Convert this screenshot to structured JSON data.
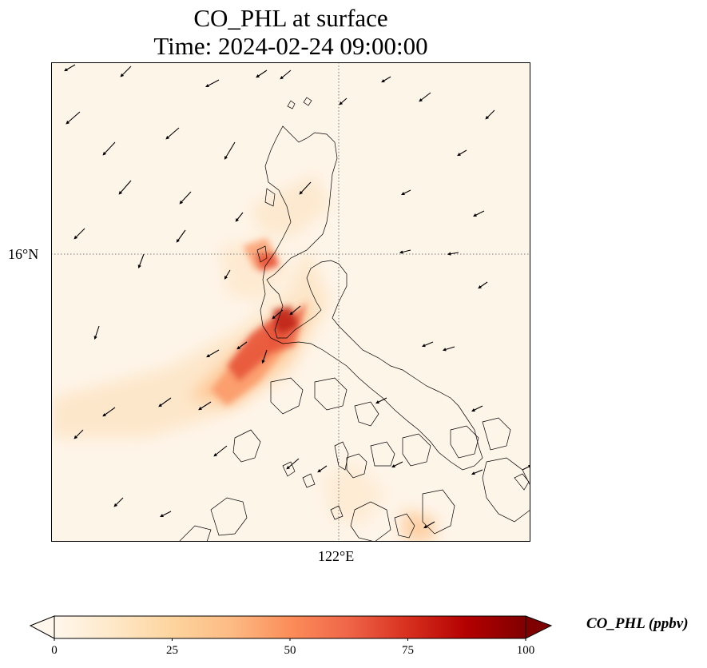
{
  "title": {
    "line1": "CO_PHL at surface",
    "line2": "Time: 2024-02-24 09:00:00"
  },
  "map": {
    "lat_tick": "16°N",
    "lon_tick": "122°E",
    "background_color": "#fef5e9",
    "plume_colors": [
      "#fde6c8",
      "#fdc793",
      "#fb9a6a",
      "#e8553a",
      "#c0281b"
    ]
  },
  "colorbar": {
    "label": "CO_PHL (ppbv)",
    "ticks": [
      "0",
      "25",
      "50",
      "75",
      "100"
    ],
    "colormap": "OrRd",
    "vmin": 0,
    "vmax": 100,
    "extend": "both"
  }
}
